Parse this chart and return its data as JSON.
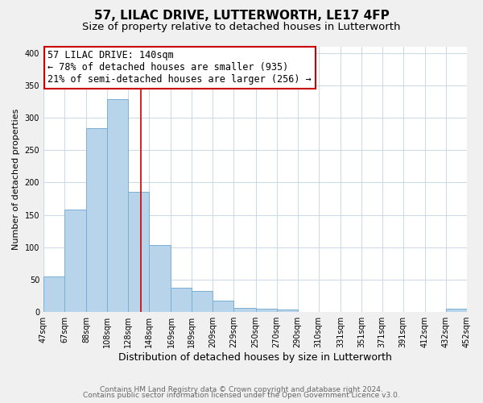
{
  "title": "57, LILAC DRIVE, LUTTERWORTH, LE17 4FP",
  "subtitle": "Size of property relative to detached houses in Lutterworth",
  "xlabel": "Distribution of detached houses by size in Lutterworth",
  "ylabel": "Number of detached properties",
  "bar_edges": [
    47,
    67,
    88,
    108,
    128,
    148,
    169,
    189,
    209,
    229,
    250,
    270,
    290,
    310,
    331,
    351,
    371,
    391,
    412,
    432,
    452
  ],
  "bar_heights": [
    55,
    158,
    284,
    328,
    185,
    103,
    37,
    32,
    18,
    6,
    5,
    4,
    0,
    0,
    0,
    0,
    0,
    0,
    0,
    5
  ],
  "bar_color": "#b8d4ea",
  "bar_edge_color": "#7aafd4",
  "property_line_x": 140,
  "property_line_color": "#cc0000",
  "ylim": [
    0,
    410
  ],
  "yticks": [
    0,
    50,
    100,
    150,
    200,
    250,
    300,
    350,
    400
  ],
  "annotation_line1": "57 LILAC DRIVE: 140sqm",
  "annotation_line2": "← 78% of detached houses are smaller (935)",
  "annotation_line3": "21% of semi-detached houses are larger (256) →",
  "footer_line1": "Contains HM Land Registry data © Crown copyright and database right 2024.",
  "footer_line2": "Contains public sector information licensed under the Open Government Licence v3.0.",
  "background_color": "#f0f0f0",
  "plot_background_color": "#ffffff",
  "grid_color": "#c8d8e8",
  "title_fontsize": 11,
  "subtitle_fontsize": 9.5,
  "xlabel_fontsize": 9,
  "ylabel_fontsize": 8,
  "tick_label_fontsize": 7,
  "footer_fontsize": 6.5,
  "annotation_fontsize": 8.5
}
